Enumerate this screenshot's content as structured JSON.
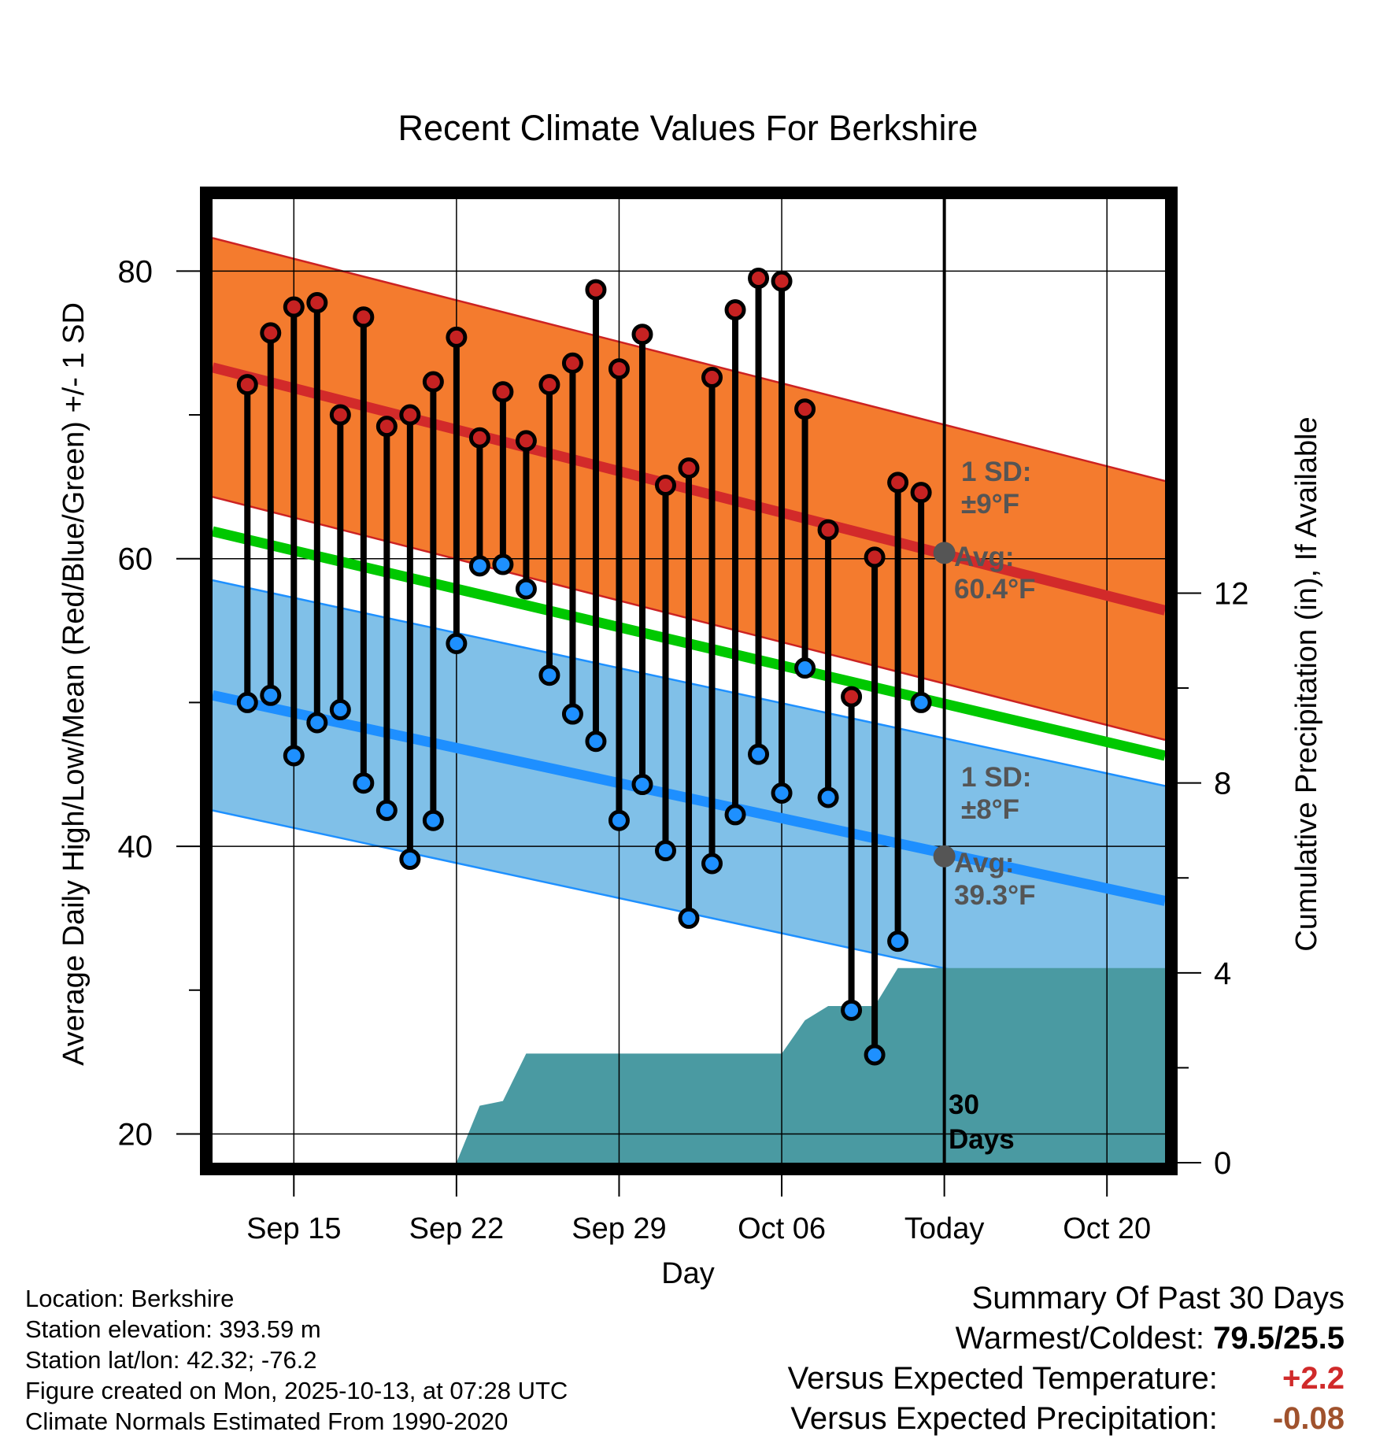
{
  "chart_data": {
    "type": "line",
    "title": "Recent Climate Values For Berkshire",
    "xlabel": "Day",
    "ylabel": "Average Daily High/Low/Mean (Red/Blue/Green) +/- 1 SD",
    "y2label": "Cumulative Precipitation (in), If Available",
    "ylim": [
      18,
      85
    ],
    "y2lim": [
      0,
      20.3
    ],
    "x_range_days": [
      -31.5,
      9.5
    ],
    "x_ticks": [
      {
        "day": -28,
        "label": "Sep 15"
      },
      {
        "day": -21,
        "label": "Sep 22"
      },
      {
        "day": -14,
        "label": "Sep 29"
      },
      {
        "day": -7,
        "label": "Oct 06"
      },
      {
        "day": 0,
        "label": "Today"
      },
      {
        "day": 7,
        "label": "Oct 20"
      }
    ],
    "y_ticks": [
      20,
      40,
      60,
      80
    ],
    "y2_ticks": [
      0,
      4,
      8,
      12
    ],
    "normal_high": {
      "start": 73.3,
      "end": 56.4,
      "sd": 9
    },
    "normal_low": {
      "start": 50.5,
      "end": 36.2,
      "sd": 8
    },
    "normal_mean": {
      "start": 61.9,
      "end": 46.3
    },
    "days": [
      -30,
      -29,
      -28,
      -27,
      -26,
      -25,
      -24,
      -23,
      -22,
      -21,
      -20,
      -19,
      -18,
      -17,
      -16,
      -15,
      -14,
      -13,
      -12,
      -11,
      -10,
      -9,
      -8,
      -7,
      -6,
      -5,
      -4,
      -3,
      -2,
      -1
    ],
    "observed_high": [
      72.1,
      75.7,
      77.5,
      77.8,
      70.0,
      76.8,
      69.2,
      70.0,
      72.3,
      75.4,
      68.4,
      71.6,
      68.2,
      72.1,
      73.6,
      78.7,
      73.2,
      75.6,
      65.1,
      66.3,
      72.6,
      77.3,
      79.5,
      79.3,
      70.4,
      62.0,
      50.4,
      60.1,
      65.3,
      64.6
    ],
    "observed_low": [
      50.0,
      50.5,
      46.3,
      48.6,
      49.5,
      44.4,
      42.5,
      39.1,
      41.8,
      54.1,
      59.5,
      59.6,
      57.9,
      51.9,
      49.2,
      47.3,
      41.8,
      44.3,
      39.7,
      35.0,
      38.8,
      42.2,
      46.4,
      43.7,
      52.4,
      43.4,
      28.6,
      25.5,
      33.4,
      50.0
    ],
    "cum_precip": {
      "days": [
        -21,
        -20,
        -19,
        -18,
        -17,
        -7,
        -6,
        -5,
        -4,
        -3,
        -2,
        -1,
        9.5
      ],
      "values": [
        0,
        1.2,
        1.3,
        2.3,
        2.3,
        2.3,
        3.0,
        3.3,
        3.3,
        3.3,
        4.1,
        4.1,
        4.1
      ]
    },
    "annotations": {
      "high_sd": "1 SD:",
      "high_sd_value": "±9°F",
      "high_avg": "Avg:",
      "high_avg_value": "60.4°F",
      "low_sd": "1 SD:",
      "low_sd_value": "±8°F",
      "low_avg": "Avg:",
      "low_avg_value": "39.3°F",
      "period_num": "30",
      "period_unit": "Days"
    },
    "today_avg_high": 60.4,
    "today_avg_low": 39.3
  },
  "colors": {
    "high_band": "#f47b2e",
    "high_edge": "#cc2222",
    "high_line": "#d22a2a",
    "low_band": "#80c0e8",
    "low_edge": "#1e90ff",
    "low_line": "#1e8fff",
    "mean_line": "#00c800",
    "precip": "#4a9aa2",
    "high_dot": "#c62222",
    "low_dot": "#1e90ff",
    "annot": "#555555"
  },
  "footer": {
    "location": "Location: Berkshire",
    "elevation": "Station elevation: 393.59 m",
    "latlon": "Station lat/lon: 42.32; -76.2",
    "created": "Figure created on Mon, 2025-10-13, at 07:28 UTC",
    "normals": "Climate Normals Estimated From 1990-2020"
  },
  "summary": {
    "title": "Summary Of Past 30 Days",
    "warm_label": "Warmest/Coldest:",
    "warm_value": "79.5/25.5",
    "temp_label": "Versus Expected Temperature:",
    "temp_value": "+2.2",
    "precip_label": "Versus Expected Precipitation:",
    "precip_value": "-0.08"
  }
}
